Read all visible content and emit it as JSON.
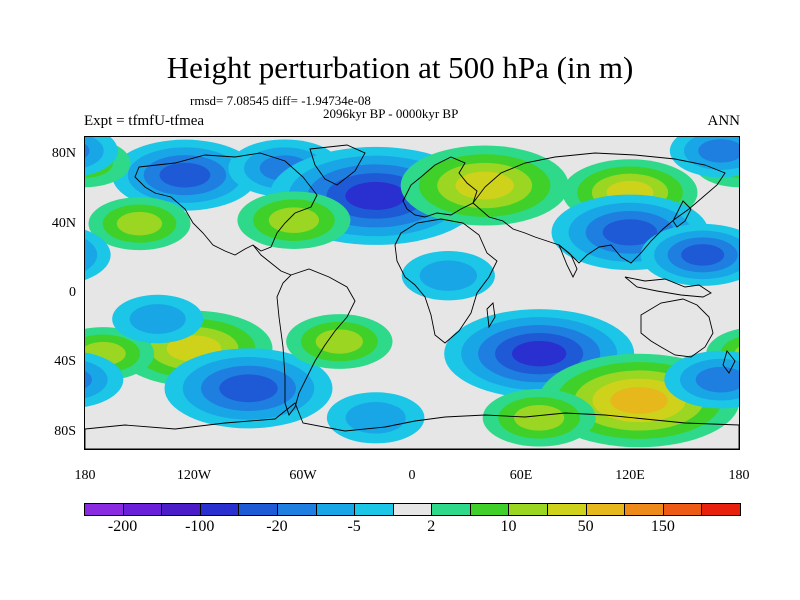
{
  "title": "Height perturbation at 500 hPa (in m)",
  "stats": "rmsd= 7.08545 diff= -1.94734e-08",
  "period": "2096kyr BP - 0000kyr BP",
  "expt": "Expt = tfmfU-tfmea",
  "season": "ANN",
  "lat_labels": [
    "80N",
    "40N",
    "0",
    "40S",
    "80S"
  ],
  "lat_values": [
    80,
    40,
    0,
    -40,
    -80
  ],
  "lon_labels": [
    "180",
    "120W",
    "60W",
    "0",
    "60E",
    "120E",
    "180"
  ],
  "lon_values": [
    -180,
    -120,
    -60,
    0,
    60,
    120,
    180
  ],
  "colorbar": {
    "colors": [
      "#8a2be2",
      "#6a20d8",
      "#4a1dc8",
      "#2a2fd0",
      "#1e5ad6",
      "#1f7fe0",
      "#19a6e6",
      "#1cc6e6",
      "#e6e6e6",
      "#2ed98a",
      "#3fd12a",
      "#9ad622",
      "#cfd21a",
      "#e6b81c",
      "#ee8a1a",
      "#ec5a16",
      "#e8200e"
    ],
    "labels": [
      "-200",
      "-100",
      "-20",
      "-5",
      "2",
      "10",
      "50",
      "150"
    ],
    "label_bins": [
      1,
      3,
      5,
      7,
      9,
      11,
      13,
      15
    ]
  },
  "field": {
    "background_color": "#e6e6e6",
    "anomalies": [
      {
        "lon": -125,
        "lat": 68,
        "value": -30
      },
      {
        "lon": -70,
        "lat": 72,
        "value": -15
      },
      {
        "lon": -20,
        "lat": 56,
        "value": -90
      },
      {
        "lon": -65,
        "lat": 42,
        "value": 15
      },
      {
        "lon": -150,
        "lat": 40,
        "value": 10
      },
      {
        "lon": -180,
        "lat": 75,
        "value": 5
      },
      {
        "lon": 40,
        "lat": 62,
        "value": 40
      },
      {
        "lon": 120,
        "lat": 58,
        "value": 25
      },
      {
        "lon": 120,
        "lat": 35,
        "value": -35
      },
      {
        "lon": 160,
        "lat": 22,
        "value": -20
      },
      {
        "lon": 170,
        "lat": 82,
        "value": -10
      },
      {
        "lon": 20,
        "lat": 10,
        "value": -6
      },
      {
        "lon": -120,
        "lat": -32,
        "value": 35
      },
      {
        "lon": -170,
        "lat": -35,
        "value": 10
      },
      {
        "lon": -90,
        "lat": -55,
        "value": -40
      },
      {
        "lon": -40,
        "lat": -28,
        "value": 12
      },
      {
        "lon": 70,
        "lat": -35,
        "value": -50
      },
      {
        "lon": 125,
        "lat": -62,
        "value": 55
      },
      {
        "lon": 70,
        "lat": -72,
        "value": 15
      },
      {
        "lon": 170,
        "lat": -50,
        "value": -15
      },
      {
        "lon": -20,
        "lat": -72,
        "value": -8
      },
      {
        "lon": -140,
        "lat": -15,
        "value": -5
      }
    ]
  }
}
